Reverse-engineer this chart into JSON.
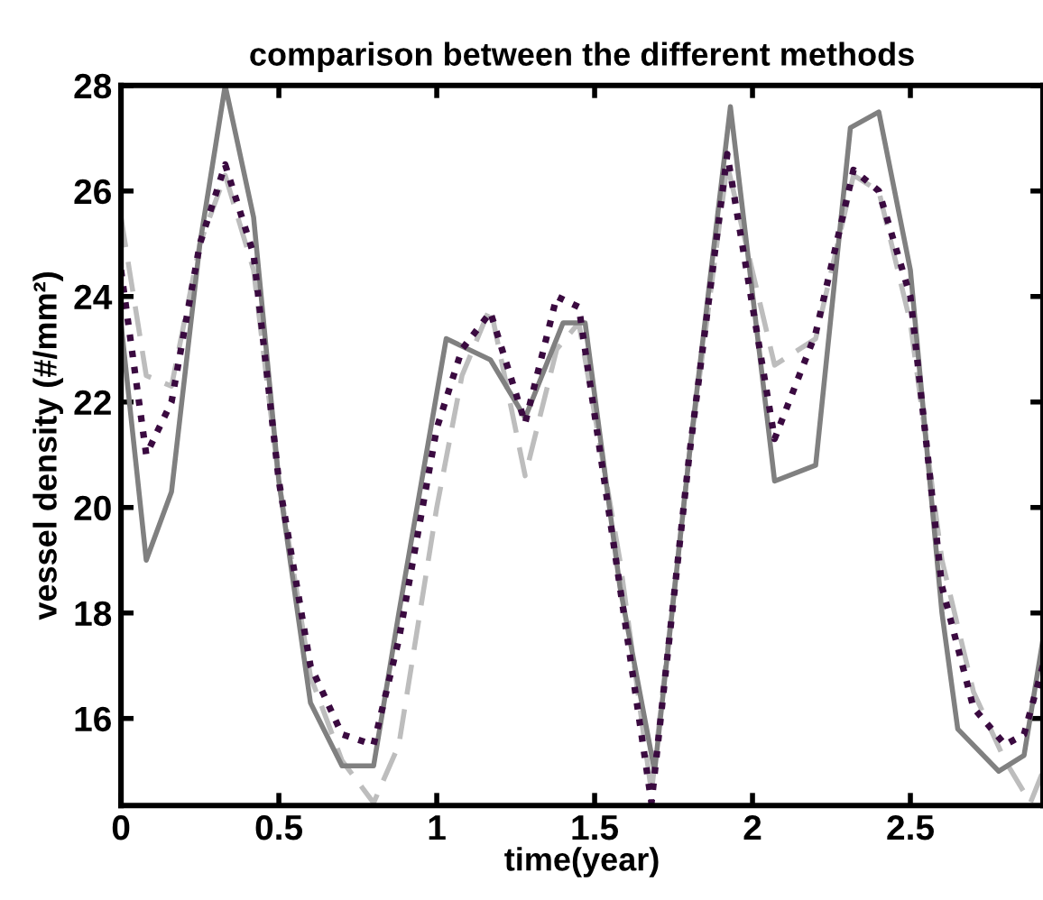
{
  "chart_data": {
    "type": "line",
    "title": "comparison between the different methods",
    "xlabel": "time(year)",
    "ylabel": "vessel density (#/mm²)",
    "xlim": [
      0,
      2.92
    ],
    "ylim": [
      14.35,
      28
    ],
    "xticks": [
      0,
      0.5,
      1,
      1.5,
      2,
      2.5
    ],
    "yticks": [
      16,
      18,
      20,
      22,
      24,
      26,
      28
    ],
    "grid": false,
    "legend": false,
    "series": [
      {
        "color": "#bdbdbd",
        "line_style": "dashed",
        "x": [
          0,
          0.08,
          0.16,
          0.25,
          0.33,
          0.42,
          0.5,
          0.6,
          0.7,
          0.8,
          0.88,
          1.0,
          1.08,
          1.17,
          1.28,
          1.38,
          1.45,
          1.58,
          1.68,
          1.8,
          1.92,
          2.07,
          2.2,
          2.32,
          2.4,
          2.5,
          2.6,
          2.7,
          2.8,
          2.88,
          2.92
        ],
        "values": [
          25.5,
          22.5,
          22.3,
          25.0,
          26.3,
          24.5,
          20.5,
          16.8,
          15.2,
          14.4,
          15.5,
          20.0,
          22.5,
          23.8,
          20.6,
          23.0,
          23.5,
          19.0,
          14.6,
          21.0,
          26.5,
          22.7,
          23.2,
          26.3,
          26.0,
          23.5,
          19.0,
          16.5,
          15.2,
          14.4,
          15.0
        ]
      },
      {
        "color": "#808080",
        "line_style": "solid",
        "x": [
          0,
          0.08,
          0.16,
          0.25,
          0.33,
          0.42,
          0.5,
          0.6,
          0.7,
          0.8,
          0.88,
          1.03,
          1.17,
          1.28,
          1.4,
          1.47,
          1.58,
          1.69,
          1.8,
          1.93,
          2.07,
          2.2,
          2.31,
          2.4,
          2.5,
          2.6,
          2.65,
          2.78,
          2.86,
          2.92
        ],
        "values": [
          23.5,
          19.0,
          20.3,
          25.0,
          28.0,
          25.5,
          20.5,
          16.3,
          15.1,
          15.1,
          18.0,
          23.2,
          22.8,
          21.7,
          23.5,
          23.5,
          18.5,
          15.0,
          21.0,
          27.6,
          20.5,
          20.8,
          27.2,
          27.5,
          24.5,
          18.0,
          15.8,
          15.0,
          15.3,
          17.5
        ]
      },
      {
        "color": "#3a0a40",
        "line_style": "dotted",
        "x": [
          0,
          0.08,
          0.16,
          0.25,
          0.33,
          0.42,
          0.5,
          0.6,
          0.7,
          0.8,
          0.88,
          1.0,
          1.08,
          1.17,
          1.28,
          1.38,
          1.45,
          1.58,
          1.68,
          1.8,
          1.92,
          2.07,
          2.2,
          2.32,
          2.4,
          2.5,
          2.6,
          2.7,
          2.8,
          2.86,
          2.92
        ],
        "values": [
          24.5,
          21.0,
          22.0,
          25.0,
          26.5,
          24.8,
          20.5,
          17.0,
          15.7,
          15.5,
          17.5,
          21.5,
          23.0,
          23.7,
          21.6,
          24.0,
          23.8,
          18.5,
          14.4,
          21.0,
          26.7,
          21.3,
          23.3,
          26.4,
          26.0,
          24.0,
          18.5,
          16.2,
          15.5,
          15.7,
          17.0
        ]
      }
    ]
  }
}
